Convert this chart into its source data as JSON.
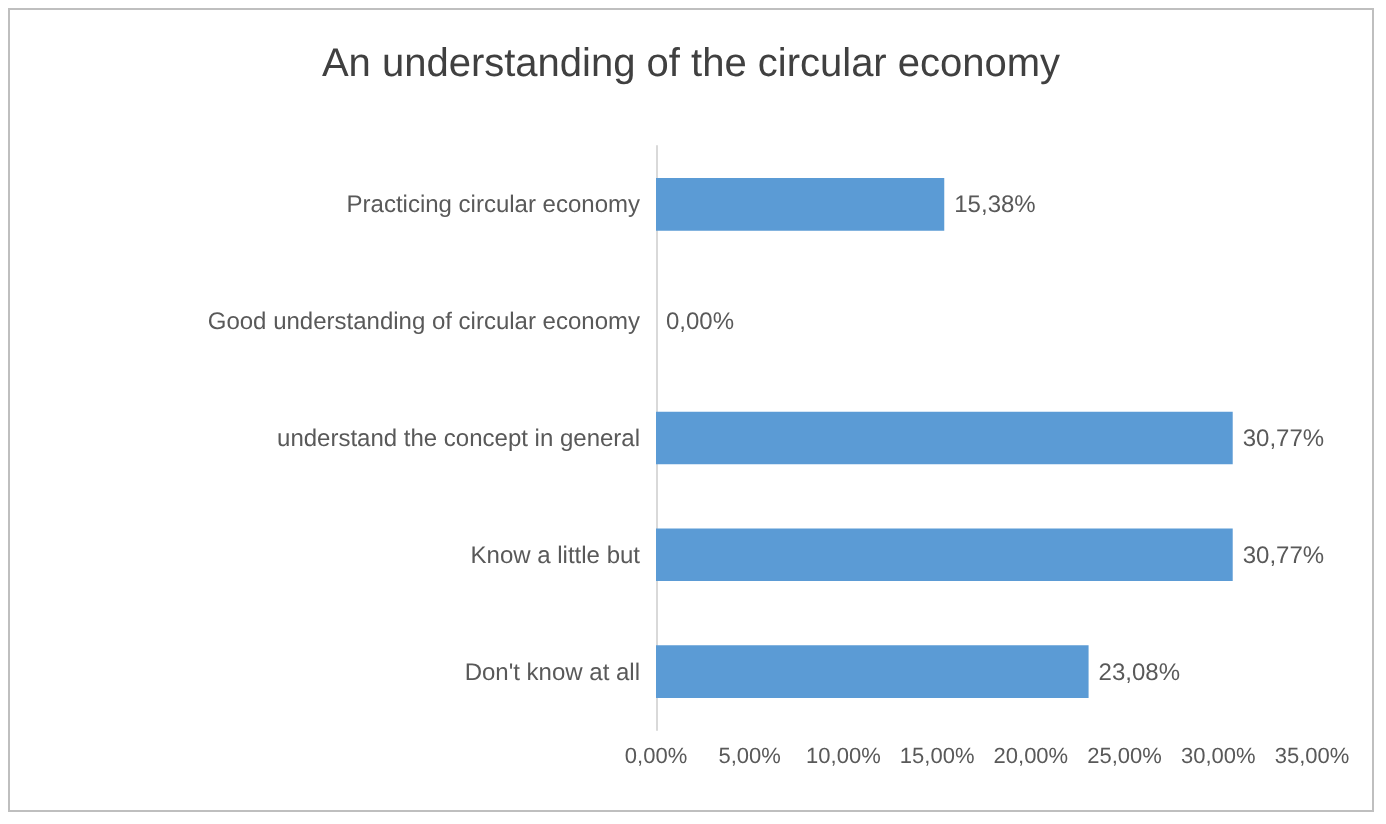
{
  "chart_data": {
    "type": "bar",
    "orientation": "horizontal",
    "title": "An understanding of the circular economy",
    "categories": [
      "Practicing circular economy",
      "Good understanding of circular economy",
      "understand the concept in general",
      "Know a little but",
      "Don't know at all"
    ],
    "values": [
      15.38,
      0,
      30.77,
      30.77,
      23.08
    ],
    "value_labels": [
      "15,38%",
      "0,00%",
      "30,77%",
      "30,77%",
      "23,08%"
    ],
    "color": "#5b9bd5",
    "xlim": [
      0,
      35
    ],
    "xticks": [
      {
        "value": 0,
        "label": "0,00%"
      },
      {
        "value": 5,
        "label": "5,00%"
      },
      {
        "value": 10,
        "label": "10,00%"
      },
      {
        "value": 15,
        "label": "15,00%"
      },
      {
        "value": 20,
        "label": "20,00%"
      },
      {
        "value": 25,
        "label": "25,00%"
      },
      {
        "value": 30,
        "label": "30,00%"
      },
      {
        "value": 35,
        "label": "35,00%"
      }
    ],
    "grid": false
  }
}
